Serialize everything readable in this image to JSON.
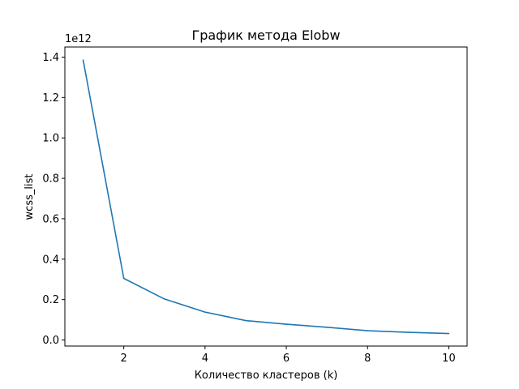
{
  "chart_data": {
    "type": "line",
    "title": "График метода Elobw",
    "xlabel": "Количество кластеров (k)",
    "ylabel": "wcss_list",
    "y_offset_label": "1e12",
    "xlim": [
      0.55,
      10.45
    ],
    "ylim": [
      -0.03,
      1.45
    ],
    "xticks": [
      2,
      4,
      6,
      8,
      10
    ],
    "yticks": [
      0.0,
      0.2,
      0.4,
      0.6,
      0.8,
      1.0,
      1.2,
      1.4
    ],
    "grid": false,
    "series": [
      {
        "color": "#1f77b4",
        "x": [
          1,
          2,
          3,
          4,
          5,
          6,
          7,
          8,
          9,
          10
        ],
        "y": [
          1.385,
          0.305,
          0.203,
          0.138,
          0.096,
          0.078,
          0.063,
          0.046,
          0.038,
          0.032
        ]
      }
    ]
  }
}
